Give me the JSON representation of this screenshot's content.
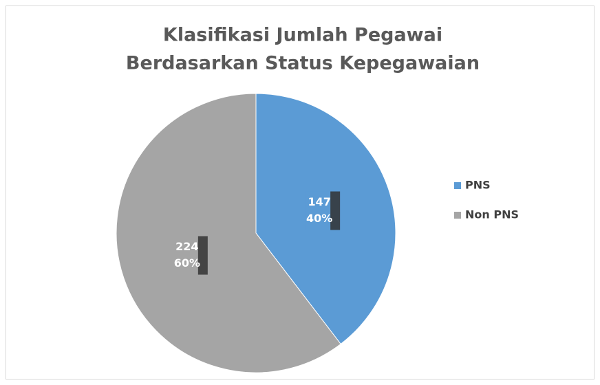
{
  "chart_data": {
    "type": "pie",
    "title": [
      "Klasifikasi Jumlah Pegawai",
      "Berdasarkan Status Kepegawaian"
    ],
    "categories": [
      "PNS",
      "Non PNS"
    ],
    "values": [
      147,
      224
    ],
    "percents": [
      40,
      60
    ],
    "percent_labels": [
      "40%",
      "60%"
    ],
    "colors": [
      "#5b9bd5",
      "#a5a5a5"
    ],
    "legend": "right"
  }
}
